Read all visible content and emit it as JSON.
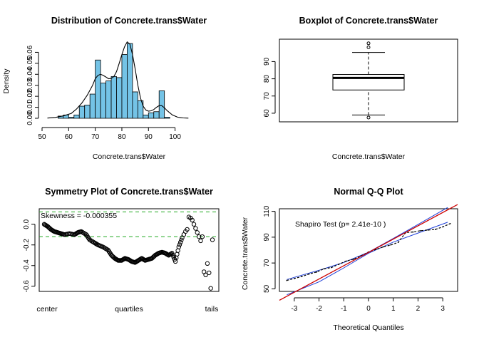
{
  "colors": {
    "hist_fill": "#74c3e6",
    "density_line": "#000000",
    "sym_ref": "#22aa22",
    "qq_fit": "#cc0000",
    "qq_band": "#1f3fd8",
    "points": "#000000"
  },
  "chart_data": [
    {
      "type": "bar",
      "title": "Distribution of Concrete.trans$Water",
      "xlabel": "Concrete.trans$Water",
      "ylabel": "Density",
      "xlim": [
        50,
        106
      ],
      "ylim": [
        0,
        0.07
      ],
      "xticks": [
        50,
        60,
        70,
        80,
        90,
        100
      ],
      "yticks": [
        0.0,
        0.01,
        0.02,
        0.03,
        0.04,
        0.05,
        0.06
      ],
      "ytick_labels": [
        "0.00",
        "0.01",
        "0.02",
        "0.03",
        "0.04",
        "0.05",
        "0.06"
      ],
      "bin_width": 2,
      "bins_start": [
        56,
        58,
        60,
        62,
        64,
        66,
        68,
        70,
        72,
        74,
        76,
        78,
        80,
        82,
        84,
        86,
        88,
        90,
        92,
        94,
        96
      ],
      "values": [
        0.002,
        0.003,
        0.001,
        0.003,
        0.011,
        0.012,
        0.022,
        0.053,
        0.032,
        0.034,
        0.038,
        0.037,
        0.058,
        0.068,
        0.024,
        0.016,
        0.003,
        0.005,
        0.006,
        0.025,
        0.001
      ],
      "density": {
        "x": [
          52,
          55,
          58,
          61,
          63,
          65,
          67,
          69,
          70,
          71,
          72,
          73,
          74,
          75,
          76,
          77,
          78,
          79,
          80,
          81,
          82,
          83,
          84,
          85,
          86,
          87,
          88,
          89,
          90,
          91,
          92,
          93,
          94,
          95,
          96,
          97,
          99,
          101,
          103,
          105
        ],
        "y": [
          0.0002,
          0.0008,
          0.0022,
          0.0045,
          0.0085,
          0.014,
          0.021,
          0.03,
          0.036,
          0.039,
          0.04,
          0.039,
          0.0375,
          0.036,
          0.0362,
          0.038,
          0.0425,
          0.05,
          0.058,
          0.065,
          0.0695,
          0.0675,
          0.058,
          0.045,
          0.03,
          0.0185,
          0.011,
          0.0075,
          0.0065,
          0.0068,
          0.008,
          0.01,
          0.0115,
          0.0115,
          0.0095,
          0.007,
          0.003,
          0.001,
          0.0003,
          0.0001
        ]
      }
    },
    {
      "type": "boxplot",
      "title": "Boxplot of Concrete.trans$Water",
      "xlabel": "Concrete.trans$Water",
      "ylim": [
        55,
        103
      ],
      "yticks": [
        60,
        70,
        80,
        90
      ],
      "whisker_low": 59,
      "q1": 73.5,
      "median": 80.5,
      "q3": 82.5,
      "whisker_high": 95.3,
      "outliers": [
        57.5,
        98.3,
        100.6
      ]
    },
    {
      "type": "scatter",
      "title": "Symmetry Plot of Concrete.trans$Water",
      "annotation": "Skewness = -0.000355",
      "xtick_labels": [
        "center",
        "quartiles",
        "tails"
      ],
      "yticks": [
        0.0,
        -0.2,
        -0.4,
        -0.6
      ],
      "ytick_labels": [
        "0.0",
        "-0.2",
        "-0.4",
        "-0.6"
      ],
      "ylim": [
        -0.65,
        0.15
      ],
      "ref_lines": [
        0.12,
        -0.12
      ],
      "points_x": [
        0,
        0.02,
        0.04,
        0.06,
        0.08,
        0.1,
        0.12,
        0.15,
        0.18,
        0.2,
        0.22,
        0.25,
        0.27,
        0.3,
        0.32,
        0.35,
        0.38,
        0.4,
        0.42,
        0.44,
        0.46,
        0.48,
        0.5,
        0.52,
        0.54,
        0.56,
        0.58,
        0.6,
        0.62,
        0.64,
        0.66,
        0.68,
        0.7,
        0.72,
        0.74,
        0.76,
        0.78,
        0.8,
        0.82,
        0.83,
        0.84,
        0.85,
        0.86,
        0.87,
        0.88,
        0.89,
        0.9,
        0.91,
        0.92,
        0.93,
        0.94,
        0.95,
        0.96,
        0.97,
        0.98,
        0.99,
        1.0
      ],
      "points_y": [
        0.0,
        -0.02,
        -0.05,
        -0.07,
        -0.08,
        -0.09,
        -0.1,
        -0.09,
        -0.1,
        -0.08,
        -0.07,
        -0.1,
        -0.15,
        -0.18,
        -0.2,
        -0.22,
        -0.25,
        -0.3,
        -0.33,
        -0.35,
        -0.35,
        -0.33,
        -0.34,
        -0.36,
        -0.37,
        -0.35,
        -0.33,
        -0.35,
        -0.34,
        -0.33,
        -0.3,
        -0.28,
        -0.27,
        -0.28,
        -0.3,
        -0.28,
        -0.36,
        -0.22,
        -0.13,
        -0.1,
        -0.07,
        -0.05,
        0.07,
        0.06,
        0.04,
        0.0,
        -0.04,
        -0.08,
        -0.12,
        -0.16,
        -0.12,
        -0.46,
        -0.49,
        -0.38,
        -0.47,
        -0.62,
        -0.15
      ]
    },
    {
      "type": "scatter",
      "title": "Normal Q-Q Plot",
      "xlabel": "Theoretical Quantiles",
      "ylabel": "Concrete.trans$Water",
      "annotation": "Shapiro Test (p= 2.41e-10 )",
      "xlim": [
        -3.6,
        3.6
      ],
      "ylim": [
        48,
        112
      ],
      "xticks": [
        -3,
        -2,
        -1,
        0,
        1,
        2,
        3
      ],
      "yticks": [
        50,
        70,
        90,
        110
      ],
      "fit_line": {
        "intercept": 78.2,
        "slope": 10.3
      },
      "band_upper": {
        "x": [
          -3.3,
          -2,
          -1,
          0,
          1,
          2,
          3.2
        ],
        "y": [
          57.2,
          64.4,
          70.4,
          78.4,
          89,
          99.8,
          113
        ]
      },
      "band_lower": {
        "x": [
          -3.3,
          -2,
          -1,
          0,
          1,
          2,
          3.2
        ],
        "y": [
          45.4,
          55.4,
          66.2,
          77.6,
          86.2,
          93.2,
          101.6
        ]
      },
      "points_x": [
        -3.3,
        -3.0,
        -2.7,
        -2.4,
        -2.1,
        -1.8,
        -1.5,
        -1.2,
        -0.9,
        -0.6,
        -0.3,
        0.0,
        0.3,
        0.6,
        0.9,
        1.2,
        1.5,
        1.8,
        2.1,
        2.4,
        2.7,
        3.0,
        3.3
      ],
      "points_y": [
        56.5,
        58,
        59.5,
        61.5,
        63,
        65.5,
        66.5,
        69,
        71.5,
        73,
        75.5,
        78.5,
        80.5,
        82.5,
        84,
        86,
        93.5,
        94,
        95,
        95.5,
        96,
        98,
        100.5
      ]
    }
  ]
}
